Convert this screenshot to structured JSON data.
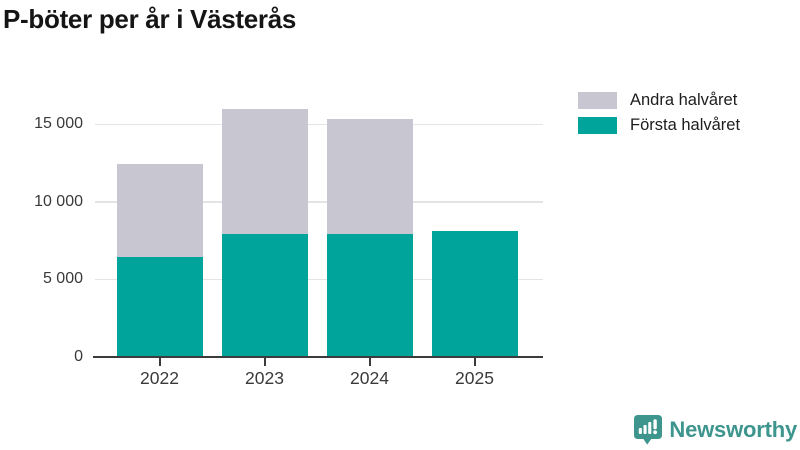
{
  "chart_data": {
    "type": "bar",
    "stacked": true,
    "title": "P-böter per år i Västerås",
    "categories": [
      "2022",
      "2023",
      "2024",
      "2025"
    ],
    "series": [
      {
        "name": "Första halvåret",
        "color": "#00a49a",
        "values": [
          6400,
          7900,
          7900,
          8100
        ]
      },
      {
        "name": "Andra halvåret",
        "color": "#c8c6d0",
        "values": [
          6000,
          8100,
          7400,
          0
        ]
      }
    ],
    "totals": [
      12400,
      16000,
      15300,
      8100
    ],
    "ylim": [
      0,
      16500
    ],
    "yticks": [
      0,
      5000,
      10000,
      15000
    ],
    "ytick_labels": [
      "0",
      "5 000",
      "10 000",
      "15 000"
    ],
    "grid": "horizontal",
    "legend_position": "top-right",
    "legend_order": [
      "Andra halvåret",
      "Första halvåret"
    ]
  },
  "colors": {
    "first_half": "#00a49a",
    "second_half": "#c8c6d0",
    "gridline": "#e4e4e6",
    "axis": "#3b3b3b",
    "title_text": "#151515",
    "tick_text": "#3a3a3a",
    "brand_teal": "#3e958e"
  },
  "footer": {
    "brand": "Newsworthy"
  },
  "icons": {
    "brand_icon": "bar-chart-speech-bubble-icon"
  }
}
